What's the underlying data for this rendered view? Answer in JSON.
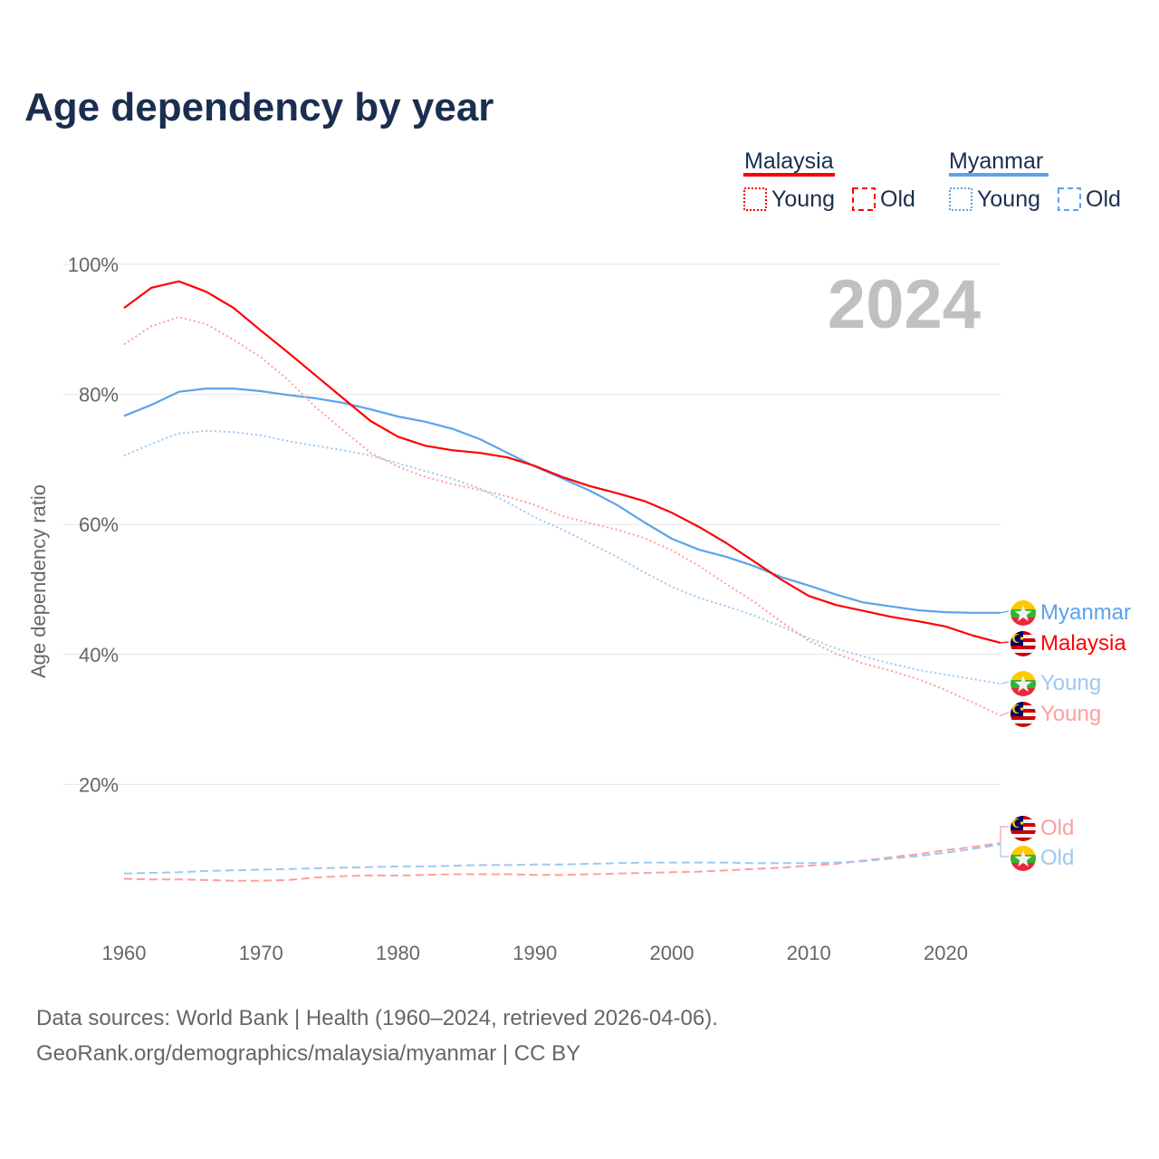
{
  "chart_data": {
    "type": "line",
    "title": "Age dependency by year",
    "ylabel": "Age dependency ratio",
    "xlabel": "",
    "year_label": "2024",
    "xlim": [
      1960,
      2024
    ],
    "ylim": [
      0,
      100
    ],
    "x_ticks": [
      "1960",
      "1970",
      "1980",
      "1990",
      "2000",
      "2010",
      "2020"
    ],
    "y_ticks": [
      "20%",
      "40%",
      "60%",
      "80%",
      "100%"
    ],
    "grid": true,
    "legend_placement": "top-right",
    "legend": {
      "groups": [
        {
          "country": "Malaysia",
          "color": "#ff0000",
          "young": "Young",
          "old": "Old"
        },
        {
          "country": "Myanmar",
          "color": "#5ba3ec",
          "young": "Young",
          "old": "Old"
        }
      ]
    },
    "x": [
      1960,
      1962,
      1964,
      1966,
      1968,
      1970,
      1972,
      1974,
      1976,
      1978,
      1980,
      1982,
      1984,
      1986,
      1988,
      1990,
      1992,
      1994,
      1996,
      1998,
      2000,
      2002,
      2004,
      2006,
      2008,
      2010,
      2012,
      2014,
      2016,
      2018,
      2020,
      2022,
      2024
    ],
    "series": [
      {
        "name": "Myanmar",
        "label": "Myanmar",
        "country": "myanmar",
        "color": "#5ba3ec",
        "dash": "none",
        "values": [
          76.7,
          78.4,
          80.4,
          80.9,
          80.9,
          80.5,
          79.9,
          79.4,
          78.7,
          77.7,
          76.6,
          75.8,
          74.7,
          73.1,
          71.0,
          68.9,
          67.1,
          65.2,
          63.0,
          60.3,
          57.8,
          56.1,
          55.0,
          53.6,
          51.9,
          50.6,
          49.2,
          48.0,
          47.4,
          46.8,
          46.5,
          46.4,
          46.4
        ]
      },
      {
        "name": "Malaysia",
        "label": "Malaysia",
        "country": "malaysia",
        "color": "#ff0000",
        "dash": "none",
        "values": [
          93.3,
          96.4,
          97.4,
          95.8,
          93.3,
          89.8,
          86.4,
          82.9,
          79.4,
          75.9,
          73.5,
          72.1,
          71.4,
          71.0,
          70.3,
          69.0,
          67.3,
          65.9,
          64.8,
          63.6,
          61.8,
          59.6,
          57.1,
          54.3,
          51.5,
          49.0,
          47.6,
          46.7,
          45.8,
          45.1,
          44.3,
          42.9,
          41.8
        ]
      },
      {
        "name": "Myanmar Young",
        "label": "Young",
        "country": "myanmar",
        "color": "#9ec8f2",
        "dash": "dotted",
        "values": [
          70.6,
          72.4,
          74.0,
          74.4,
          74.2,
          73.7,
          72.8,
          72.1,
          71.4,
          70.6,
          69.4,
          68.2,
          67.0,
          65.5,
          63.4,
          61.1,
          59.2,
          57.1,
          55.0,
          52.6,
          50.4,
          48.7,
          47.4,
          46.0,
          44.3,
          42.5,
          40.9,
          39.7,
          38.6,
          37.6,
          36.9,
          36.2,
          35.5
        ]
      },
      {
        "name": "Malaysia Young",
        "label": "Young",
        "country": "malaysia",
        "color": "#ff9e9e",
        "dash": "dotted",
        "values": [
          87.7,
          90.5,
          91.9,
          90.8,
          88.4,
          85.7,
          82.2,
          78.0,
          74.5,
          71.0,
          68.9,
          67.3,
          66.2,
          65.3,
          64.3,
          63.0,
          61.3,
          60.2,
          59.2,
          57.9,
          56.0,
          53.6,
          50.8,
          48.1,
          45.0,
          42.1,
          40.1,
          38.6,
          37.5,
          36.2,
          34.5,
          32.6,
          30.6
        ]
      },
      {
        "name": "Malaysia Old",
        "label": "Old",
        "country": "malaysia",
        "color": "#ff9e9e",
        "dash": "dashed",
        "values": [
          5.5,
          5.4,
          5.4,
          5.3,
          5.2,
          5.2,
          5.3,
          5.7,
          5.9,
          6.0,
          6.0,
          6.1,
          6.2,
          6.2,
          6.2,
          6.1,
          6.1,
          6.2,
          6.3,
          6.4,
          6.5,
          6.6,
          6.8,
          7.0,
          7.2,
          7.5,
          7.8,
          8.3,
          8.8,
          9.3,
          9.9,
          10.4,
          11.0
        ]
      },
      {
        "name": "Myanmar Old",
        "label": "Old",
        "country": "myanmar",
        "color": "#9ec8f2",
        "dash": "dashed",
        "values": [
          6.3,
          6.4,
          6.5,
          6.7,
          6.8,
          6.9,
          7.0,
          7.1,
          7.2,
          7.3,
          7.4,
          7.4,
          7.5,
          7.6,
          7.6,
          7.7,
          7.7,
          7.8,
          7.9,
          8.0,
          8.0,
          8.0,
          8.0,
          7.9,
          7.9,
          7.9,
          8.0,
          8.2,
          8.6,
          9.0,
          9.5,
          10.1,
          10.8
        ]
      }
    ]
  },
  "footer": {
    "source": "Data sources: World Bank | Health (1960–2024, retrieved 2026-04-06).",
    "credit": "GeoRank.org/demographics/malaysia/myanmar | CC BY"
  }
}
